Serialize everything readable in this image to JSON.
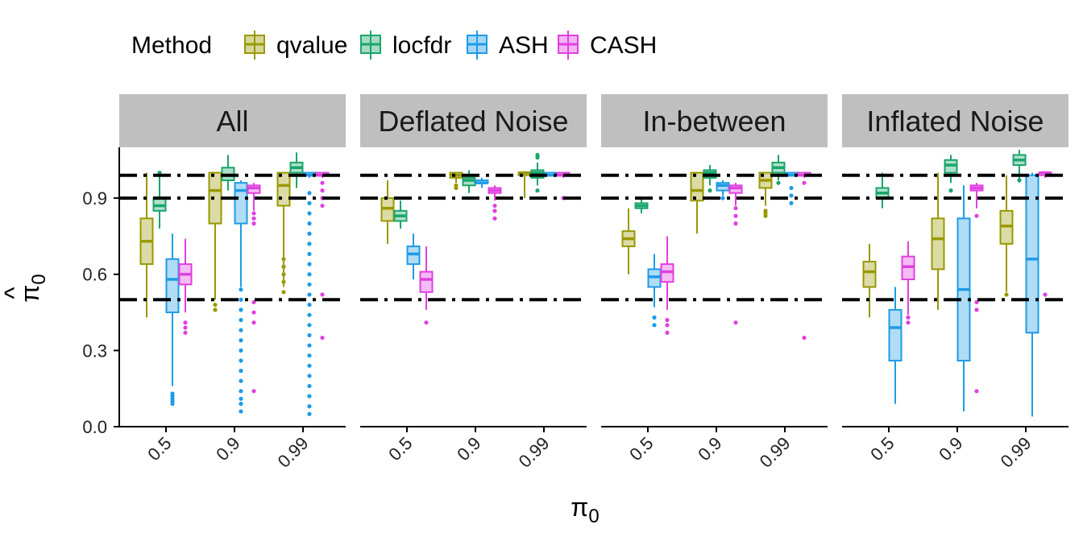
{
  "chart_data": {
    "type": "boxplot",
    "legend": {
      "title": "Method",
      "placement": "top",
      "entries": [
        {
          "name": "qvalue",
          "color": "#999900"
        },
        {
          "name": "locfdr",
          "color": "#1aa56a"
        },
        {
          "name": "ASH",
          "color": "#1e9be6"
        },
        {
          "name": "CASH",
          "color": "#e040e0"
        }
      ]
    },
    "xlabel_symbol": "π",
    "xlabel_subscript": "0",
    "ylabel_symbol": "π",
    "ylabel_hat": "^",
    "ylabel_subscript": "0",
    "ylim": [
      0,
      1.1
    ],
    "y_ticks": [
      "0.0",
      "0.3",
      "0.6",
      "0.9"
    ],
    "y_tick_values": [
      0.0,
      0.3,
      0.6,
      0.9
    ],
    "categories": [
      "0.5",
      "0.9",
      "0.99"
    ],
    "reference_lines": [
      0.5,
      0.9,
      0.99
    ],
    "reference_line_style": "dashed",
    "panels": [
      {
        "name": "All",
        "groups": [
          {
            "x": "0.5",
            "boxes": [
              {
                "method": "qvalue",
                "min": 0.43,
                "q1": 0.64,
                "median": 0.73,
                "q3": 0.82,
                "max": 1.0,
                "outliers": []
              },
              {
                "method": "locfdr",
                "min": 0.78,
                "q1": 0.85,
                "median": 0.87,
                "q3": 0.9,
                "max": 0.99,
                "outliers": [
                  1.0
                ]
              },
              {
                "method": "ASH",
                "min": 0.16,
                "q1": 0.45,
                "median": 0.58,
                "q3": 0.66,
                "max": 0.76,
                "outliers": [
                  0.13,
                  0.12,
                  0.11,
                  0.1,
                  0.09
                ]
              },
              {
                "method": "CASH",
                "min": 0.45,
                "q1": 0.56,
                "median": 0.6,
                "q3": 0.64,
                "max": 0.74,
                "outliers": [
                  0.41,
                  0.39,
                  0.37
                ]
              }
            ]
          },
          {
            "x": "0.9",
            "boxes": [
              {
                "method": "qvalue",
                "min": 0.5,
                "q1": 0.8,
                "median": 0.93,
                "q3": 1.0,
                "max": 1.0,
                "outliers": [
                  0.48,
                  0.46
                ]
              },
              {
                "method": "locfdr",
                "min": 0.93,
                "q1": 0.97,
                "median": 0.99,
                "q3": 1.02,
                "max": 1.07,
                "outliers": []
              },
              {
                "method": "ASH",
                "min": 0.55,
                "q1": 0.8,
                "median": 0.93,
                "q3": 0.96,
                "max": 0.97,
                "outliers": [
                  0.54,
                  0.5,
                  0.46,
                  0.42,
                  0.38,
                  0.34,
                  0.3,
                  0.26,
                  0.22,
                  0.18,
                  0.14,
                  0.11,
                  0.09,
                  0.06
                ]
              },
              {
                "method": "CASH",
                "min": 0.85,
                "q1": 0.92,
                "median": 0.94,
                "q3": 0.95,
                "max": 0.96,
                "outliers": [
                  0.84,
                  0.82,
                  0.8,
                  0.49,
                  0.45,
                  0.41,
                  0.14
                ]
              }
            ]
          },
          {
            "x": "0.99",
            "boxes": [
              {
                "method": "qvalue",
                "min": 0.55,
                "q1": 0.87,
                "median": 0.95,
                "q3": 1.0,
                "max": 1.0,
                "outliers": [
                  0.66,
                  0.63,
                  0.6,
                  0.57,
                  0.53
                ]
              },
              {
                "method": "locfdr",
                "min": 0.94,
                "q1": 1.0,
                "median": 1.02,
                "q3": 1.04,
                "max": 1.08,
                "outliers": []
              },
              {
                "method": "ASH",
                "min": 0.98,
                "q1": 0.99,
                "median": 0.99,
                "q3": 1.0,
                "max": 1.0,
                "outliers": [
                  0.92,
                  0.88,
                  0.84,
                  0.8,
                  0.76,
                  0.72,
                  0.68,
                  0.64,
                  0.6,
                  0.56,
                  0.52,
                  0.48,
                  0.44,
                  0.4,
                  0.36,
                  0.32,
                  0.28,
                  0.24,
                  0.2,
                  0.16,
                  0.12,
                  0.08,
                  0.05
                ]
              },
              {
                "method": "CASH",
                "min": 0.98,
                "q1": 0.99,
                "median": 0.99,
                "q3": 1.0,
                "max": 1.0,
                "outliers": [
                  0.96,
                  0.93,
                  0.9,
                  0.87,
                  0.52,
                  0.35
                ]
              }
            ]
          }
        ]
      },
      {
        "name": "Deflated Noise",
        "groups": [
          {
            "x": "0.5",
            "boxes": [
              {
                "method": "qvalue",
                "min": 0.72,
                "q1": 0.81,
                "median": 0.86,
                "q3": 0.9,
                "max": 0.97,
                "outliers": []
              },
              {
                "method": "locfdr",
                "min": 0.78,
                "q1": 0.81,
                "median": 0.83,
                "q3": 0.85,
                "max": 0.89,
                "outliers": []
              },
              {
                "method": "ASH",
                "min": 0.58,
                "q1": 0.64,
                "median": 0.68,
                "q3": 0.71,
                "max": 0.76,
                "outliers": []
              },
              {
                "method": "CASH",
                "min": 0.46,
                "q1": 0.53,
                "median": 0.58,
                "q3": 0.61,
                "max": 0.71,
                "outliers": [
                  0.41
                ]
              }
            ]
          },
          {
            "x": "0.9",
            "boxes": [
              {
                "method": "qvalue",
                "min": 0.96,
                "q1": 0.98,
                "median": 0.99,
                "q3": 1.0,
                "max": 1.0,
                "outliers": [
                  0.95,
                  0.94
                ]
              },
              {
                "method": "locfdr",
                "min": 0.92,
                "q1": 0.95,
                "median": 0.97,
                "q3": 0.98,
                "max": 1.01,
                "outliers": []
              },
              {
                "method": "ASH",
                "min": 0.94,
                "q1": 0.96,
                "median": 0.96,
                "q3": 0.97,
                "max": 0.98,
                "outliers": []
              },
              {
                "method": "CASH",
                "min": 0.89,
                "q1": 0.92,
                "median": 0.93,
                "q3": 0.94,
                "max": 0.95,
                "outliers": [
                  0.87,
                  0.85,
                  0.82
                ]
              }
            ]
          },
          {
            "x": "0.99",
            "boxes": [
              {
                "method": "qvalue",
                "min": 0.9,
                "q1": 0.99,
                "median": 1.0,
                "q3": 1.0,
                "max": 1.0,
                "outliers": []
              },
              {
                "method": "locfdr",
                "min": 0.95,
                "q1": 0.98,
                "median": 1.0,
                "q3": 1.01,
                "max": 1.04,
                "outliers": [
                  1.07,
                  1.06,
                  0.93
                ]
              },
              {
                "method": "ASH",
                "min": 0.99,
                "q1": 0.99,
                "median": 0.99,
                "q3": 1.0,
                "max": 1.0,
                "outliers": []
              },
              {
                "method": "CASH",
                "min": 0.98,
                "q1": 0.99,
                "median": 0.99,
                "q3": 1.0,
                "max": 1.0,
                "outliers": [
                  0.9
                ]
              }
            ]
          }
        ]
      },
      {
        "name": "In-between",
        "groups": [
          {
            "x": "0.5",
            "boxes": [
              {
                "method": "qvalue",
                "min": 0.6,
                "q1": 0.71,
                "median": 0.74,
                "q3": 0.77,
                "max": 0.86,
                "outliers": []
              },
              {
                "method": "locfdr",
                "min": 0.84,
                "q1": 0.86,
                "median": 0.87,
                "q3": 0.88,
                "max": 0.9,
                "outliers": []
              },
              {
                "method": "ASH",
                "min": 0.47,
                "q1": 0.55,
                "median": 0.59,
                "q3": 0.62,
                "max": 0.68,
                "outliers": [
                  0.43,
                  0.4
                ]
              },
              {
                "method": "CASH",
                "min": 0.46,
                "q1": 0.57,
                "median": 0.61,
                "q3": 0.64,
                "max": 0.75,
                "outliers": [
                  0.42,
                  0.4,
                  0.37
                ]
              }
            ]
          },
          {
            "x": "0.9",
            "boxes": [
              {
                "method": "qvalue",
                "min": 0.76,
                "q1": 0.89,
                "median": 0.93,
                "q3": 1.0,
                "max": 1.0,
                "outliers": []
              },
              {
                "method": "locfdr",
                "min": 0.95,
                "q1": 0.98,
                "median": 1.0,
                "q3": 1.01,
                "max": 1.03,
                "outliers": [
                  0.93
                ]
              },
              {
                "method": "ASH",
                "min": 0.91,
                "q1": 0.93,
                "median": 0.95,
                "q3": 0.96,
                "max": 0.97,
                "outliers": [
                  0.9
                ]
              },
              {
                "method": "CASH",
                "min": 0.87,
                "q1": 0.92,
                "median": 0.94,
                "q3": 0.95,
                "max": 0.96,
                "outliers": [
                  0.86,
                  0.83,
                  0.8,
                  0.41
                ]
              }
            ]
          },
          {
            "x": "0.99",
            "boxes": [
              {
                "method": "qvalue",
                "min": 0.87,
                "q1": 0.94,
                "median": 0.97,
                "q3": 1.0,
                "max": 1.0,
                "outliers": [
                  0.85,
                  0.84,
                  0.83
                ]
              },
              {
                "method": "locfdr",
                "min": 0.97,
                "q1": 1.0,
                "median": 1.02,
                "q3": 1.04,
                "max": 1.07,
                "outliers": [
                  0.96
                ]
              },
              {
                "method": "ASH",
                "min": 0.99,
                "q1": 0.99,
                "median": 0.99,
                "q3": 1.0,
                "max": 1.0,
                "outliers": [
                  0.94,
                  0.91,
                  0.88
                ]
              },
              {
                "method": "CASH",
                "min": 0.98,
                "q1": 0.99,
                "median": 0.99,
                "q3": 1.0,
                "max": 1.0,
                "outliers": [
                  0.96,
                  0.35
                ]
              }
            ]
          }
        ]
      },
      {
        "name": "Inflated Noise",
        "groups": [
          {
            "x": "0.5",
            "boxes": [
              {
                "method": "qvalue",
                "min": 0.43,
                "q1": 0.55,
                "median": 0.61,
                "q3": 0.65,
                "max": 0.72,
                "outliers": []
              },
              {
                "method": "locfdr",
                "min": 0.86,
                "q1": 0.9,
                "median": 0.92,
                "q3": 0.94,
                "max": 1.0,
                "outliers": []
              },
              {
                "method": "ASH",
                "min": 0.09,
                "q1": 0.26,
                "median": 0.39,
                "q3": 0.46,
                "max": 0.55,
                "outliers": []
              },
              {
                "method": "CASH",
                "min": 0.44,
                "q1": 0.58,
                "median": 0.63,
                "q3": 0.67,
                "max": 0.73,
                "outliers": [
                  0.43,
                  0.41
                ]
              }
            ]
          },
          {
            "x": "0.9",
            "boxes": [
              {
                "method": "qvalue",
                "min": 0.46,
                "q1": 0.62,
                "median": 0.74,
                "q3": 0.82,
                "max": 1.0,
                "outliers": []
              },
              {
                "method": "locfdr",
                "min": 0.96,
                "q1": 1.0,
                "median": 1.03,
                "q3": 1.05,
                "max": 1.07,
                "outliers": [
                  0.93
                ]
              },
              {
                "method": "ASH",
                "min": 0.06,
                "q1": 0.26,
                "median": 0.54,
                "q3": 0.82,
                "max": 0.95,
                "outliers": []
              },
              {
                "method": "CASH",
                "min": 0.86,
                "q1": 0.93,
                "median": 0.94,
                "q3": 0.95,
                "max": 0.96,
                "outliers": [
                  0.83,
                  0.49,
                  0.46,
                  0.14
                ]
              }
            ]
          },
          {
            "x": "0.99",
            "boxes": [
              {
                "method": "qvalue",
                "min": 0.53,
                "q1": 0.72,
                "median": 0.79,
                "q3": 0.85,
                "max": 0.99,
                "outliers": [
                  0.52
                ]
              },
              {
                "method": "locfdr",
                "min": 0.97,
                "q1": 1.03,
                "median": 1.05,
                "q3": 1.07,
                "max": 1.09,
                "outliers": [
                  0.97
                ]
              },
              {
                "method": "ASH",
                "min": 0.04,
                "q1": 0.37,
                "median": 0.66,
                "q3": 0.99,
                "max": 1.0,
                "outliers": []
              },
              {
                "method": "CASH",
                "min": 0.98,
                "q1": 0.99,
                "median": 1.0,
                "q3": 1.0,
                "max": 1.0,
                "outliers": [
                  0.52
                ]
              }
            ]
          }
        ]
      }
    ]
  }
}
